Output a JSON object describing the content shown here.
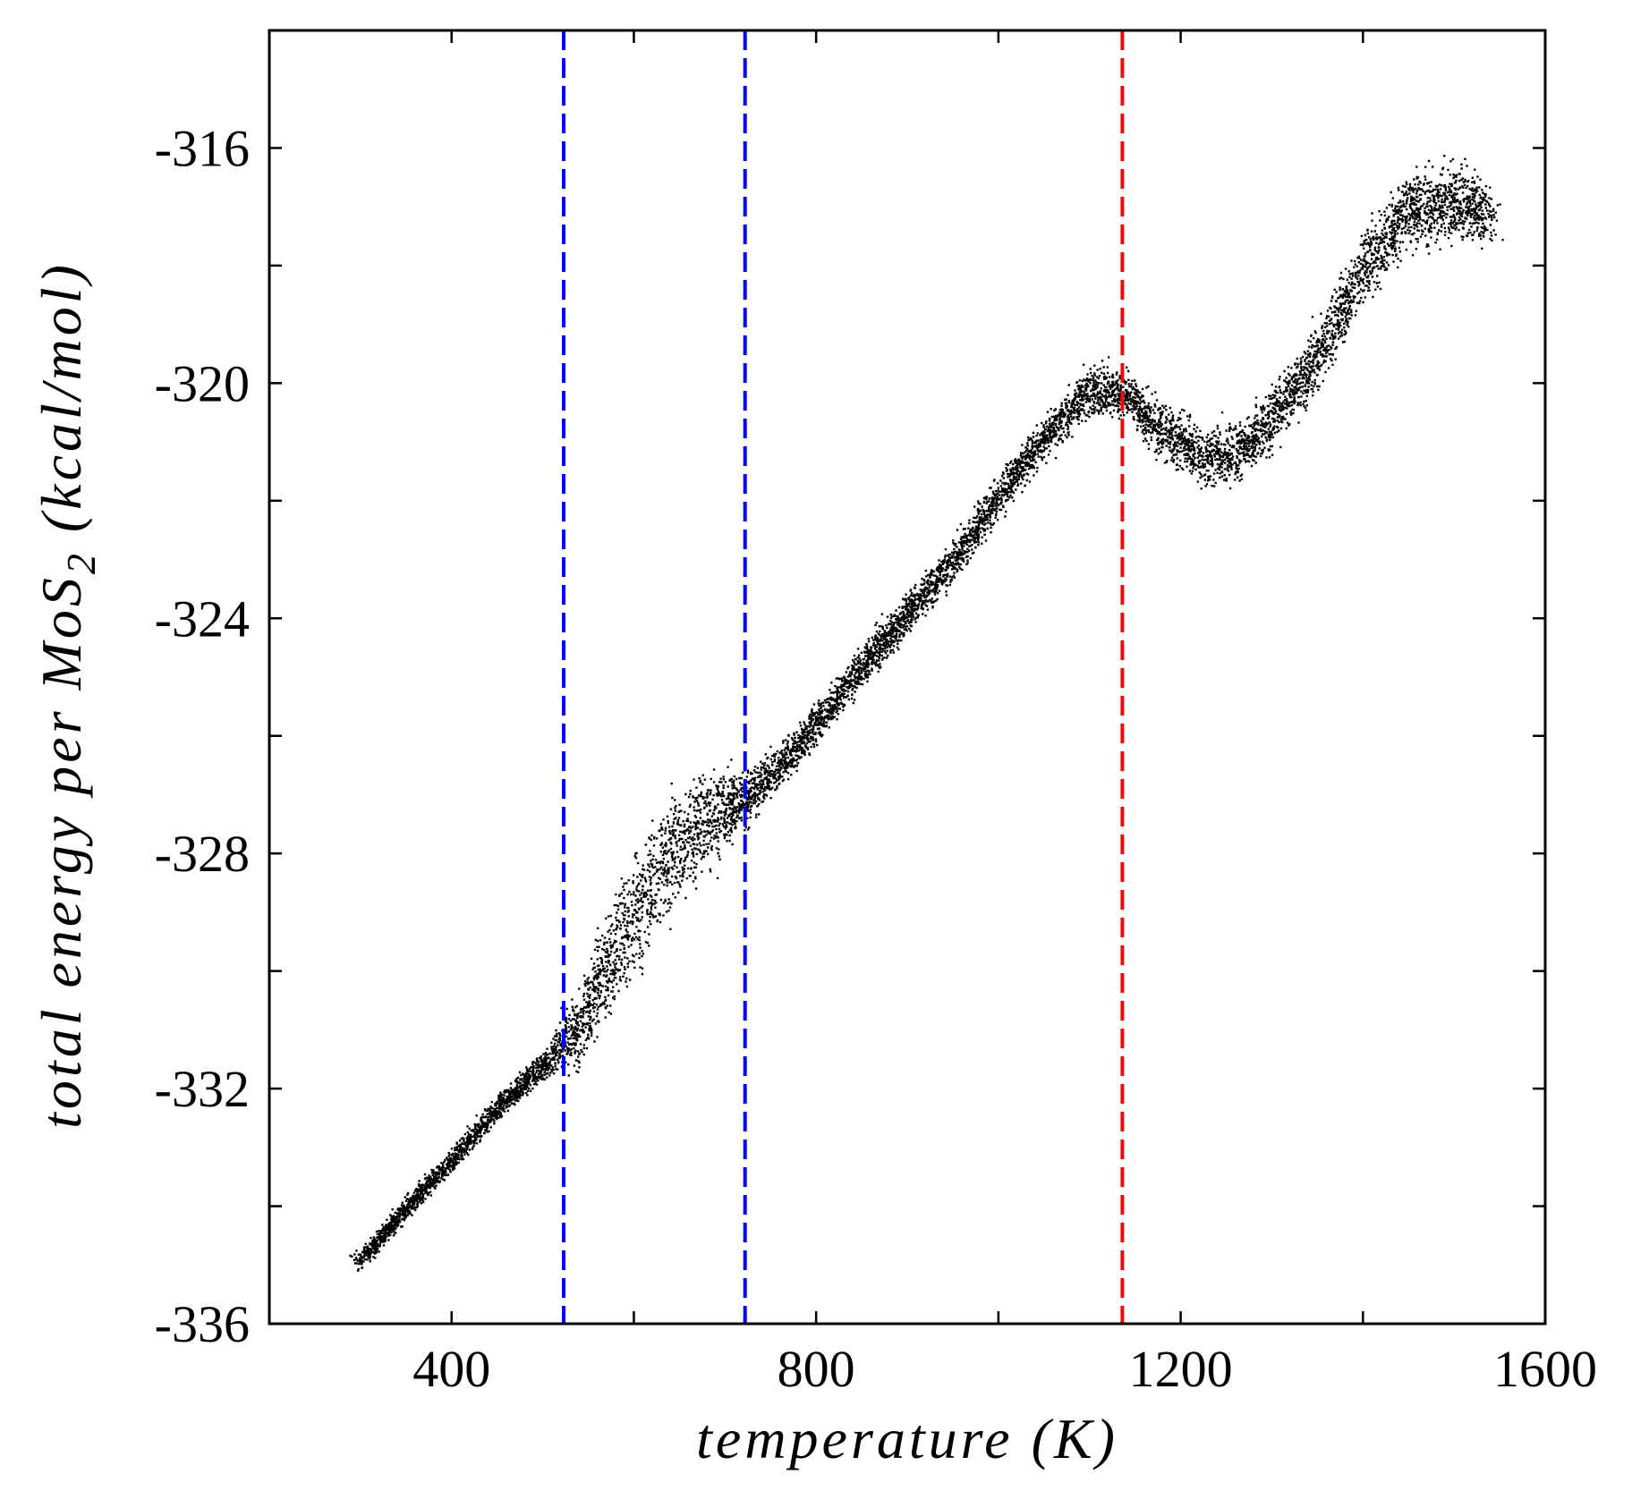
{
  "chart_data": {
    "type": "scatter",
    "title": "",
    "xlabel": "temperature (K)",
    "ylabel": {
      "prefix": "total energy per MoS",
      "subscript": "2",
      "suffix": " (kcal/mol)"
    },
    "xlim": [
      200,
      1600
    ],
    "ylim": [
      -336,
      -314
    ],
    "xticks": [
      400,
      800,
      1200,
      1600
    ],
    "xtick_labels": [
      "400",
      "800",
      "1200",
      "1600"
    ],
    "yticks": [
      -336,
      -332,
      -328,
      -324,
      -320,
      -316
    ],
    "ytick_labels": [
      "-336",
      "-332",
      "-328",
      "-324",
      "-320",
      "-316"
    ],
    "grid": false,
    "legend": "none",
    "point_color": "#000000",
    "trend": {
      "x": [
        300,
        350,
        400,
        450,
        500,
        520,
        540,
        560,
        600,
        640,
        680,
        720,
        760,
        800,
        850,
        900,
        950,
        1000,
        1050,
        1100,
        1140,
        1180,
        1220,
        1260,
        1300,
        1350,
        1400,
        1450,
        1500,
        1540
      ],
      "y": [
        -334.9,
        -334.0,
        -333.2,
        -332.3,
        -331.6,
        -331.2,
        -330.9,
        -330.2,
        -329.0,
        -328.0,
        -327.4,
        -327.1,
        -326.5,
        -325.8,
        -324.8,
        -323.9,
        -323.0,
        -321.9,
        -320.9,
        -320.1,
        -320.2,
        -320.8,
        -321.2,
        -321.2,
        -320.6,
        -319.5,
        -318.0,
        -317.0,
        -316.9,
        -317.1
      ]
    },
    "spread": {
      "x": [
        300,
        500,
        540,
        600,
        650,
        700,
        720,
        760,
        900,
        1050,
        1150,
        1250,
        1350,
        1450,
        1550
      ],
      "y": [
        0.15,
        0.2,
        0.6,
        0.9,
        0.85,
        0.6,
        0.4,
        0.3,
        0.3,
        0.3,
        0.4,
        0.45,
        0.5,
        0.55,
        0.5
      ]
    },
    "vertical_lines": [
      {
        "x": 523,
        "color": "#0000ff",
        "style": "dashed"
      },
      {
        "x": 722,
        "color": "#0000ff",
        "style": "dashed"
      },
      {
        "x": 1136,
        "color": "#ff0000",
        "style": "dashed"
      }
    ]
  }
}
